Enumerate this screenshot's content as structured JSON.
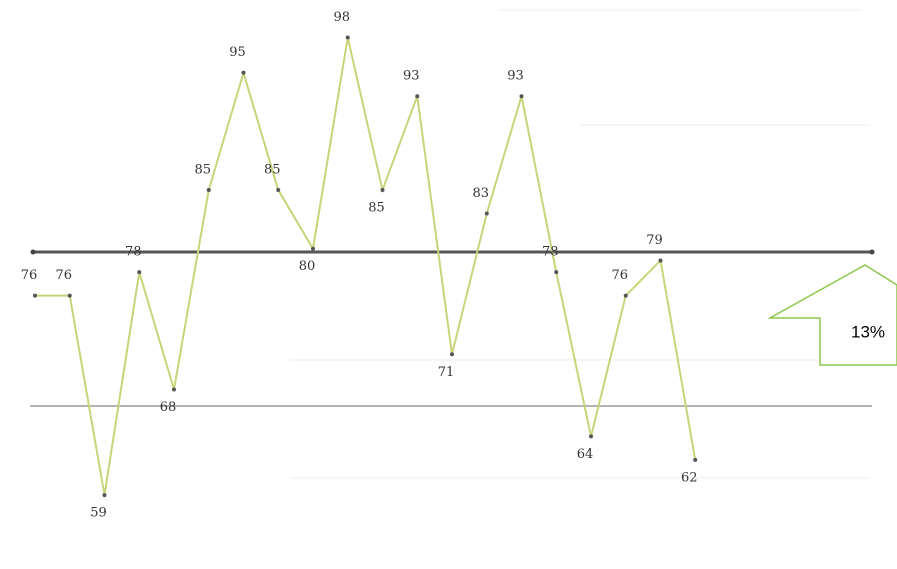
{
  "chart_data": {
    "type": "line",
    "annotation": "13%",
    "series": [
      {
        "color": "#c9d47a",
        "values": [
          76,
          76,
          59,
          78,
          68,
          85,
          95,
          85,
          80,
          98,
          85,
          93,
          71,
          83,
          93,
          78,
          64,
          76,
          79,
          62
        ]
      }
    ],
    "ylim": [
      52.7,
      101.2
    ]
  }
}
